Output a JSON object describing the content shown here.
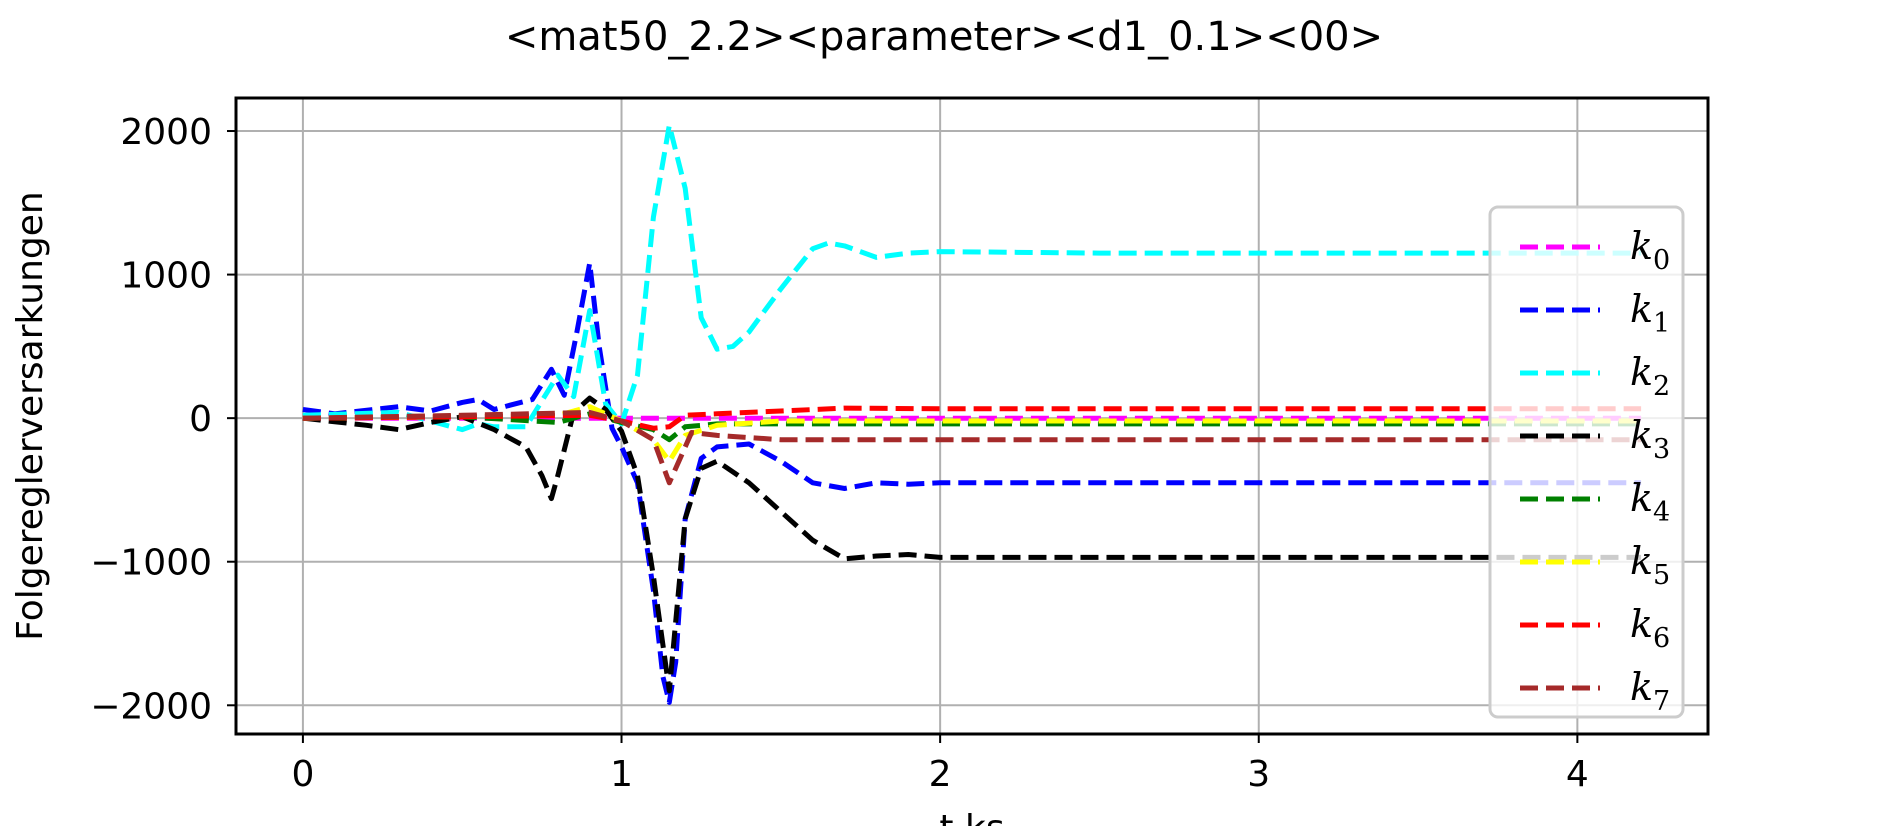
{
  "chart_data": {
    "type": "line",
    "title": "<mat50_2.2><parameter><d1_0.1><00>",
    "xlabel": "t ks",
    "ylabel": "Folgereglerversarkungen",
    "xlim": [
      -0.21,
      4.41
    ],
    "ylim": [
      -2200,
      2230
    ],
    "xticks": [
      0,
      1,
      2,
      3,
      4
    ],
    "xtick_labels": [
      "0",
      "1",
      "2",
      "3",
      "4"
    ],
    "yticks": [
      2000,
      1000,
      0,
      -1000,
      -2000
    ],
    "ytick_labels": [
      "2000",
      "1000",
      "0",
      "−1000",
      "−2000"
    ],
    "grid": true,
    "legend_position": "right",
    "line_style": "dashed",
    "series": [
      {
        "name": "k0",
        "label_base": "k",
        "label_sub": "0",
        "color": "#ff00ff",
        "x": [
          0,
          0.5,
          1.0,
          1.5,
          2.0,
          3.0,
          4.2
        ],
        "y": [
          0,
          0,
          0,
          0,
          0,
          0,
          0
        ]
      },
      {
        "name": "k1",
        "label_base": "k",
        "label_sub": "1",
        "color": "#0000ff",
        "x": [
          0,
          0.1,
          0.3,
          0.4,
          0.5,
          0.55,
          0.6,
          0.65,
          0.72,
          0.78,
          0.82,
          0.86,
          0.9,
          0.93,
          0.97,
          1.0,
          1.05,
          1.1,
          1.13,
          1.15,
          1.17,
          1.2,
          1.25,
          1.3,
          1.4,
          1.5,
          1.6,
          1.7,
          1.8,
          1.9,
          2.0,
          2.5,
          3.0,
          3.5,
          4.2
        ],
        "y": [
          60,
          30,
          80,
          50,
          110,
          130,
          60,
          90,
          130,
          340,
          160,
          600,
          1080,
          500,
          -70,
          -200,
          -450,
          -1200,
          -1800,
          -1980,
          -1700,
          -700,
          -280,
          -200,
          -180,
          -300,
          -450,
          -490,
          -450,
          -460,
          -450,
          -450,
          -450,
          -450,
          -450
        ]
      },
      {
        "name": "k2",
        "label_base": "k",
        "label_sub": "2",
        "color": "#00ffff",
        "x": [
          0,
          0.3,
          0.5,
          0.55,
          0.6,
          0.7,
          0.8,
          0.85,
          0.9,
          0.95,
          1.0,
          1.05,
          1.1,
          1.15,
          1.2,
          1.25,
          1.3,
          1.35,
          1.4,
          1.5,
          1.6,
          1.65,
          1.7,
          1.8,
          1.9,
          2.0,
          2.5,
          3.0,
          3.5,
          4.2
        ],
        "y": [
          20,
          40,
          -80,
          -40,
          -60,
          -60,
          300,
          150,
          750,
          100,
          -40,
          300,
          1400,
          2040,
          1600,
          700,
          480,
          500,
          600,
          900,
          1180,
          1220,
          1200,
          1120,
          1150,
          1160,
          1150,
          1150,
          1150,
          1150
        ]
      },
      {
        "name": "k3",
        "label_base": "k",
        "label_sub": "3",
        "color": "#000000",
        "x": [
          0,
          0.2,
          0.3,
          0.4,
          0.5,
          0.6,
          0.7,
          0.75,
          0.78,
          0.8,
          0.85,
          0.9,
          0.95,
          1.0,
          1.05,
          1.1,
          1.15,
          1.2,
          1.25,
          1.3,
          1.4,
          1.5,
          1.6,
          1.7,
          1.8,
          1.9,
          2.0,
          2.5,
          3.0,
          3.5,
          4.2
        ],
        "y": [
          0,
          -50,
          -80,
          -30,
          10,
          -80,
          -200,
          -400,
          -560,
          -400,
          40,
          140,
          60,
          -90,
          -400,
          -1100,
          -1900,
          -700,
          -350,
          -300,
          -450,
          -650,
          -850,
          -980,
          -960,
          -950,
          -970,
          -970,
          -970,
          -970,
          -970
        ]
      },
      {
        "name": "k4",
        "label_base": "k",
        "label_sub": "4",
        "color": "#008000",
        "x": [
          0,
          0.5,
          0.8,
          0.9,
          1.0,
          1.1,
          1.15,
          1.2,
          1.3,
          1.5,
          2.0,
          3.0,
          4.2
        ],
        "y": [
          0,
          10,
          -30,
          30,
          -30,
          -80,
          -150,
          -60,
          -40,
          -40,
          -40,
          -40,
          -40
        ]
      },
      {
        "name": "k5",
        "label_base": "k",
        "label_sub": "5",
        "color": "#ffff00",
        "x": [
          0,
          0.5,
          0.8,
          0.9,
          1.0,
          1.1,
          1.15,
          1.2,
          1.3,
          1.5,
          2.0,
          3.0,
          4.2
        ],
        "y": [
          0,
          10,
          20,
          80,
          -20,
          -150,
          -300,
          -120,
          -50,
          -20,
          -20,
          -20,
          -20
        ]
      },
      {
        "name": "k6",
        "label_base": "k",
        "label_sub": "6",
        "color": "#ff0000",
        "x": [
          0,
          0.5,
          0.9,
          1.0,
          1.1,
          1.15,
          1.2,
          1.3,
          1.5,
          1.7,
          2.0,
          3.0,
          4.2
        ],
        "y": [
          0,
          10,
          20,
          -20,
          -70,
          -60,
          20,
          30,
          50,
          70,
          65,
          65,
          65
        ]
      },
      {
        "name": "k7",
        "label_base": "k",
        "label_sub": "7",
        "color": "#a52a2a",
        "x": [
          0,
          0.5,
          0.9,
          1.0,
          1.1,
          1.15,
          1.18,
          1.22,
          1.3,
          1.5,
          2.0,
          3.0,
          4.2
        ],
        "y": [
          0,
          20,
          40,
          -20,
          -150,
          -450,
          -300,
          -100,
          -120,
          -150,
          -150,
          -150,
          -150
        ]
      }
    ]
  }
}
